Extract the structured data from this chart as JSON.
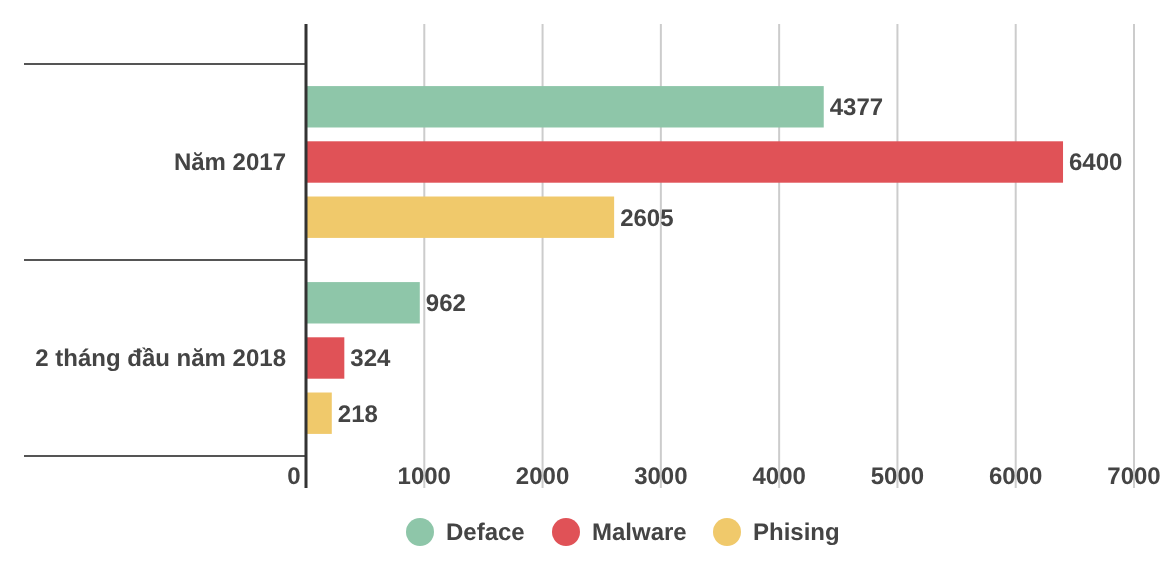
{
  "chart_data": {
    "type": "bar",
    "orientation": "horizontal",
    "categories": [
      "Năm 2017",
      "2 tháng đầu năm 2018"
    ],
    "series": [
      {
        "name": "Deface",
        "color": "#8ec6a9",
        "values": [
          4377,
          962
        ]
      },
      {
        "name": "Malware",
        "color": "#e05257",
        "values": [
          6400,
          324
        ]
      },
      {
        "name": "Phising",
        "color": "#f0c96b",
        "values": [
          2605,
          218
        ]
      }
    ],
    "xlim": [
      0,
      7000
    ],
    "xticks": [
      0,
      1000,
      2000,
      3000,
      4000,
      5000,
      6000,
      7000
    ],
    "grid": "x",
    "legend": "bottom",
    "data_labels": true
  }
}
